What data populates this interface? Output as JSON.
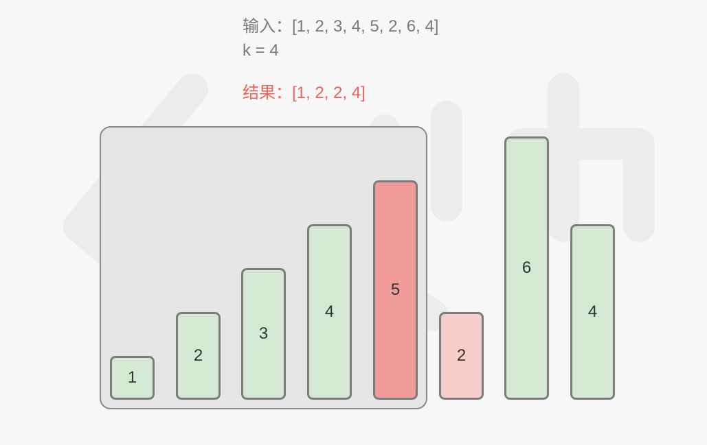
{
  "input_label": "输入：[1, 2, 3, 4, 5, 2, 6, 4]",
  "k_label": "k = 4",
  "result_label": "结果：[1, 2, 2, 4]",
  "colors": {
    "normal": "#d5e8d4",
    "max_in_window": "#f19c99",
    "new_entry": "#f8cecc",
    "window_background": "#e6e6e6",
    "result_text": "#e8645c"
  },
  "bars": [
    {
      "label": "1",
      "value": 1,
      "state": "normal"
    },
    {
      "label": "2",
      "value": 2,
      "state": "normal"
    },
    {
      "label": "3",
      "value": 3,
      "state": "normal"
    },
    {
      "label": "4",
      "value": 4,
      "state": "normal"
    },
    {
      "label": "5",
      "value": 5,
      "state": "max_in_window"
    },
    {
      "label": "2",
      "value": 2,
      "state": "new_entry"
    },
    {
      "label": "6",
      "value": 6,
      "state": "normal"
    },
    {
      "label": "4",
      "value": 4,
      "state": "normal"
    }
  ],
  "window": {
    "start_index": 0,
    "end_index": 4
  }
}
